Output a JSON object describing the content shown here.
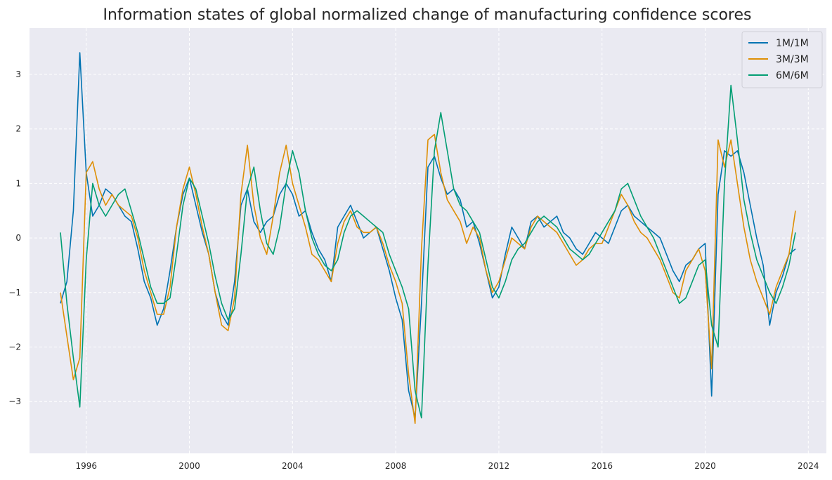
{
  "chart_data": {
    "type": "line",
    "title": "Information states of global normalized change of manufacturing confidence scores",
    "xlabel": "",
    "ylabel": "",
    "x_ticks": [
      "1996",
      "2000",
      "2004",
      "2008",
      "2012",
      "2016",
      "2020",
      "2024"
    ],
    "y_ticks": [
      "−3",
      "−2",
      "−1",
      "0",
      "1",
      "2",
      "3"
    ],
    "xlim": [
      1993.8,
      2024.7
    ],
    "ylim": [
      -3.95,
      3.85
    ],
    "grid": true,
    "legend_position": "top-right",
    "x_resolution": "quarterly",
    "x": [
      1995.0,
      1995.25,
      1995.5,
      1995.75,
      1996.0,
      1996.25,
      1996.5,
      1996.75,
      1997.0,
      1997.25,
      1997.5,
      1997.75,
      1998.0,
      1998.25,
      1998.5,
      1998.75,
      1999.0,
      1999.25,
      1999.5,
      1999.75,
      2000.0,
      2000.25,
      2000.5,
      2000.75,
      2001.0,
      2001.25,
      2001.5,
      2001.75,
      2002.0,
      2002.25,
      2002.5,
      2002.75,
      2003.0,
      2003.25,
      2003.5,
      2003.75,
      2004.0,
      2004.25,
      2004.5,
      2004.75,
      2005.0,
      2005.25,
      2005.5,
      2005.75,
      2006.0,
      2006.25,
      2006.5,
      2006.75,
      2007.0,
      2007.25,
      2007.5,
      2007.75,
      2008.0,
      2008.25,
      2008.5,
      2008.75,
      2009.0,
      2009.25,
      2009.5,
      2009.75,
      2010.0,
      2010.25,
      2010.5,
      2010.75,
      2011.0,
      2011.25,
      2011.5,
      2011.75,
      2012.0,
      2012.25,
      2012.5,
      2012.75,
      2013.0,
      2013.25,
      2013.5,
      2013.75,
      2014.0,
      2014.25,
      2014.5,
      2014.75,
      2015.0,
      2015.25,
      2015.5,
      2015.75,
      2016.0,
      2016.25,
      2016.5,
      2016.75,
      2017.0,
      2017.25,
      2017.5,
      2017.75,
      2018.0,
      2018.25,
      2018.5,
      2018.75,
      2019.0,
      2019.25,
      2019.5,
      2019.75,
      2020.0,
      2020.25,
      2020.5,
      2020.75,
      2021.0,
      2021.25,
      2021.5,
      2021.75,
      2022.0,
      2022.25,
      2022.5,
      2022.75,
      2023.0,
      2023.25,
      2023.5
    ],
    "series": [
      {
        "name": "1M/1M",
        "color": "#0173b2",
        "values": [
          -1.2,
          -0.8,
          0.5,
          3.4,
          1.2,
          0.4,
          0.6,
          0.9,
          0.8,
          0.6,
          0.4,
          0.3,
          -0.2,
          -0.8,
          -1.1,
          -1.6,
          -1.3,
          -0.6,
          0.2,
          0.8,
          1.1,
          0.6,
          0.1,
          -0.3,
          -1.0,
          -1.4,
          -1.6,
          -0.8,
          0.6,
          0.9,
          0.3,
          0.1,
          0.3,
          0.4,
          0.8,
          1.0,
          0.8,
          0.4,
          0.5,
          0.1,
          -0.2,
          -0.4,
          -0.8,
          0.2,
          0.4,
          0.6,
          0.3,
          0.0,
          0.1,
          0.2,
          -0.2,
          -0.6,
          -1.1,
          -1.5,
          -2.8,
          -3.3,
          -1.2,
          1.3,
          1.5,
          1.1,
          0.8,
          0.9,
          0.7,
          0.2,
          0.3,
          -0.1,
          -0.6,
          -1.1,
          -0.9,
          -0.3,
          0.2,
          0.0,
          -0.2,
          0.3,
          0.4,
          0.2,
          0.3,
          0.4,
          0.1,
          0.0,
          -0.2,
          -0.3,
          -0.1,
          0.1,
          0.0,
          -0.1,
          0.2,
          0.5,
          0.6,
          0.4,
          0.3,
          0.2,
          0.1,
          0.0,
          -0.3,
          -0.6,
          -0.8,
          -0.5,
          -0.4,
          -0.2,
          -0.1,
          -2.9,
          0.8,
          1.6,
          1.5,
          1.6,
          1.2,
          0.6,
          0.0,
          -0.5,
          -1.6,
          -1.0,
          -0.7,
          -0.3,
          -0.2
        ]
      },
      {
        "name": "3M/3M",
        "color": "#de8f05",
        "values": [
          -1.0,
          -1.8,
          -2.6,
          -2.2,
          1.2,
          1.4,
          0.9,
          0.6,
          0.8,
          0.6,
          0.5,
          0.4,
          0.0,
          -0.6,
          -1.0,
          -1.4,
          -1.4,
          -0.9,
          0.2,
          0.9,
          1.3,
          0.8,
          0.2,
          -0.3,
          -1.0,
          -1.6,
          -1.7,
          -1.1,
          0.8,
          1.7,
          0.6,
          0.0,
          -0.3,
          0.4,
          1.2,
          1.7,
          1.0,
          0.6,
          0.2,
          -0.3,
          -0.4,
          -0.6,
          -0.8,
          -0.1,
          0.3,
          0.5,
          0.2,
          0.1,
          0.1,
          0.2,
          -0.1,
          -0.5,
          -0.8,
          -1.2,
          -2.5,
          -3.4,
          -0.2,
          1.8,
          1.9,
          1.2,
          0.7,
          0.5,
          0.3,
          -0.1,
          0.2,
          0.0,
          -0.6,
          -1.0,
          -0.8,
          -0.4,
          0.0,
          -0.1,
          -0.2,
          0.2,
          0.4,
          0.3,
          0.2,
          0.1,
          -0.1,
          -0.3,
          -0.5,
          -0.4,
          -0.2,
          -0.1,
          -0.1,
          0.2,
          0.5,
          0.8,
          0.6,
          0.3,
          0.1,
          0.0,
          -0.2,
          -0.4,
          -0.7,
          -1.0,
          -1.1,
          -0.6,
          -0.4,
          -0.2,
          -0.6,
          -2.4,
          1.8,
          1.3,
          1.8,
          1.0,
          0.2,
          -0.4,
          -0.8,
          -1.1,
          -1.4,
          -0.9,
          -0.6,
          -0.3,
          0.5
        ]
      },
      {
        "name": "6M/6M",
        "color": "#029e73",
        "values": [
          0.1,
          -1.2,
          -2.2,
          -3.1,
          -0.4,
          1.0,
          0.6,
          0.4,
          0.6,
          0.8,
          0.9,
          0.5,
          0.1,
          -0.4,
          -0.9,
          -1.2,
          -1.2,
          -1.1,
          -0.3,
          0.6,
          1.1,
          0.9,
          0.4,
          -0.1,
          -0.7,
          -1.2,
          -1.5,
          -1.3,
          -0.3,
          0.9,
          1.3,
          0.5,
          -0.1,
          -0.3,
          0.2,
          1.0,
          1.6,
          1.2,
          0.5,
          0.0,
          -0.3,
          -0.5,
          -0.6,
          -0.4,
          0.1,
          0.4,
          0.5,
          0.4,
          0.3,
          0.2,
          0.1,
          -0.3,
          -0.6,
          -0.9,
          -1.3,
          -2.8,
          -3.3,
          -0.5,
          1.6,
          2.3,
          1.6,
          0.9,
          0.6,
          0.5,
          0.3,
          0.1,
          -0.4,
          -0.9,
          -1.1,
          -0.8,
          -0.4,
          -0.2,
          -0.1,
          0.1,
          0.3,
          0.4,
          0.3,
          0.2,
          0.0,
          -0.2,
          -0.3,
          -0.4,
          -0.3,
          -0.1,
          0.1,
          0.3,
          0.5,
          0.9,
          1.0,
          0.7,
          0.4,
          0.2,
          0.0,
          -0.3,
          -0.6,
          -0.9,
          -1.2,
          -1.1,
          -0.8,
          -0.5,
          -0.4,
          -1.6,
          -2.0,
          1.0,
          2.8,
          1.8,
          0.7,
          0.1,
          -0.4,
          -0.7,
          -1.0,
          -1.2,
          -0.9,
          -0.5,
          0.1
        ]
      }
    ]
  }
}
